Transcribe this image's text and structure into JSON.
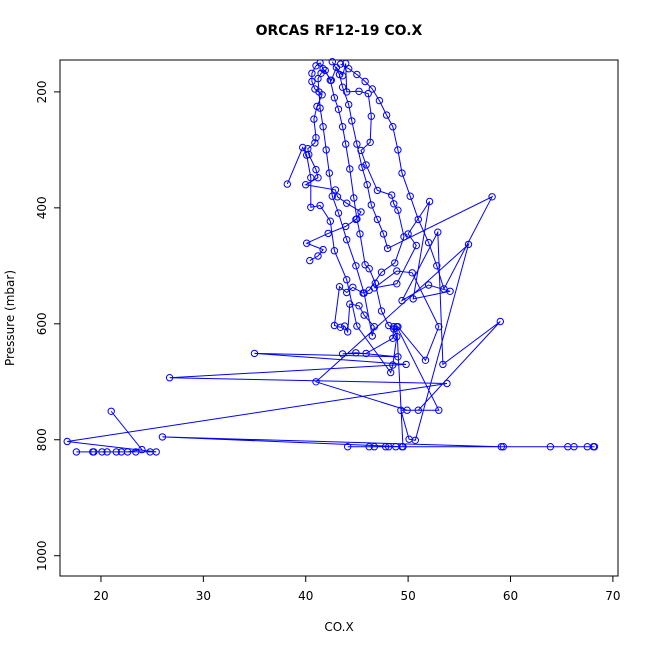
{
  "chart_data": {
    "type": "line",
    "title": "ORCAS RF12-19 CO.X",
    "xlabel": "CO.X",
    "ylabel": "Pressure (mbar)",
    "xlim": [
      16,
      70.5
    ],
    "ylim": [
      1035,
      145
    ],
    "y_reversed": true,
    "x_ticks": [
      20,
      30,
      40,
      50,
      60,
      70
    ],
    "y_ticks": [
      200,
      400,
      600,
      800,
      1000
    ],
    "grid": false,
    "legend": "none",
    "colors": {
      "series": "#0000ff",
      "axes": "#000000"
    },
    "series": [
      {
        "points": [
          [
            21.0,
            751
          ],
          [
            24.0,
            817
          ],
          [
            22.6,
            821
          ],
          [
            21.5,
            821
          ],
          [
            20.6,
            821
          ],
          [
            19.3,
            821
          ],
          [
            17.6,
            821
          ],
          [
            19.2,
            821
          ],
          [
            20.1,
            821
          ],
          [
            22.0,
            821
          ],
          [
            23.4,
            821
          ],
          [
            24.8,
            821
          ],
          [
            25.4,
            821
          ],
          [
            16.7,
            803
          ],
          [
            53.8,
            703
          ],
          [
            26.7,
            693
          ],
          [
            49.8,
            670
          ],
          [
            35.0,
            651
          ],
          [
            49.0,
            657
          ],
          [
            44.9,
            650
          ],
          [
            43.6,
            652
          ],
          [
            45.9,
            651
          ],
          [
            48.5,
            625
          ],
          [
            48.6,
            605
          ],
          [
            49.0,
            605
          ],
          [
            51.7,
            663
          ],
          [
            53.0,
            605
          ],
          [
            50.4,
            512
          ],
          [
            48.9,
            509
          ],
          [
            46.7,
            538
          ],
          [
            48.9,
            531
          ],
          [
            50.8,
            465
          ],
          [
            50.0,
            445
          ],
          [
            52.1,
            389
          ],
          [
            50.5,
            557
          ],
          [
            54.1,
            544
          ],
          [
            52.0,
            533
          ],
          [
            49.4,
            560
          ],
          [
            52.9,
            442
          ],
          [
            53.4,
            670
          ],
          [
            59.0,
            596
          ],
          [
            51.0,
            749
          ],
          [
            49.3,
            749
          ],
          [
            50.1,
            799
          ],
          [
            50.7,
            801
          ],
          [
            55.9,
            463
          ],
          [
            41.0,
            700
          ],
          [
            49.9,
            749
          ],
          [
            53.0,
            749
          ],
          [
            48.9,
            605
          ],
          [
            49.5,
            812
          ],
          [
            59.3,
            812
          ],
          [
            59.1,
            812
          ],
          [
            26.0,
            795
          ],
          [
            49.4,
            812
          ],
          [
            47.8,
            812
          ],
          [
            46.7,
            812
          ],
          [
            46.2,
            812
          ],
          [
            44.1,
            812
          ],
          [
            48.1,
            812
          ],
          [
            48.8,
            812
          ],
          [
            63.9,
            812
          ],
          [
            65.6,
            812
          ],
          [
            66.2,
            812
          ],
          [
            67.5,
            812
          ],
          [
            68.1,
            812
          ],
          [
            68.2,
            812
          ]
        ]
      },
      {
        "points": [
          [
            40.4,
            491
          ],
          [
            41.2,
            483
          ],
          [
            41.7,
            472
          ],
          [
            40.1,
            461
          ],
          [
            42.2,
            444
          ],
          [
            43.9,
            432
          ],
          [
            44.9,
            420
          ],
          [
            45.4,
            407
          ],
          [
            44.0,
            392
          ],
          [
            43.1,
            381
          ],
          [
            42.9,
            369
          ],
          [
            40.0,
            360
          ],
          [
            41.2,
            348
          ],
          [
            41.0,
            334
          ],
          [
            40.3,
            308
          ],
          [
            40.2,
            298
          ],
          [
            40.9,
            288
          ],
          [
            41.0,
            279
          ],
          [
            40.8,
            247
          ],
          [
            41.1,
            225
          ],
          [
            41.6,
            205
          ],
          [
            40.9,
            195
          ],
          [
            40.6,
            182
          ],
          [
            40.6,
            168
          ],
          [
            41.0,
            155
          ],
          [
            41.4,
            150
          ],
          [
            41.7,
            160
          ],
          [
            42.5,
            180
          ],
          [
            43.0,
            158
          ],
          [
            43.6,
            172
          ],
          [
            43.9,
            151
          ],
          [
            44.0,
            200
          ],
          [
            45.2,
            199
          ],
          [
            46.1,
            203
          ],
          [
            46.4,
            242
          ],
          [
            46.3,
            287
          ],
          [
            45.4,
            301
          ],
          [
            45.9,
            326
          ],
          [
            47.0,
            370
          ],
          [
            48.4,
            378
          ],
          [
            48.6,
            393
          ],
          [
            49.0,
            404
          ],
          [
            49.6,
            450
          ],
          [
            48.7,
            495
          ],
          [
            47.4,
            511
          ],
          [
            46.2,
            542
          ],
          [
            45.6,
            547
          ],
          [
            44.6,
            537
          ],
          [
            44.0,
            546
          ],
          [
            43.3,
            536
          ],
          [
            42.8,
            603
          ],
          [
            43.4,
            606
          ],
          [
            43.8,
            604
          ],
          [
            44.1,
            614
          ],
          [
            44.3,
            566
          ],
          [
            45.2,
            569
          ],
          [
            45.7,
            585
          ],
          [
            46.7,
            605
          ],
          [
            46.5,
            621
          ],
          [
            45.7,
            547
          ],
          [
            44.9,
            500
          ],
          [
            44.0,
            455
          ],
          [
            43.2,
            409
          ],
          [
            42.6,
            380
          ],
          [
            42.3,
            340
          ],
          [
            42.0,
            300
          ],
          [
            41.7,
            260
          ],
          [
            41.4,
            228
          ],
          [
            41.3,
            200
          ],
          [
            41.2,
            177
          ],
          [
            41.5,
            168
          ],
          [
            41.9,
            163
          ],
          [
            42.4,
            180
          ],
          [
            42.8,
            210
          ],
          [
            43.2,
            230
          ],
          [
            43.6,
            260
          ],
          [
            43.9,
            290
          ],
          [
            44.3,
            333
          ],
          [
            44.7,
            383
          ],
          [
            45.0,
            419
          ],
          [
            45.3,
            445
          ],
          [
            45.8,
            498
          ],
          [
            46.2,
            505
          ],
          [
            46.8,
            530
          ],
          [
            47.4,
            578
          ],
          [
            48.1,
            603
          ],
          [
            48.6,
            609
          ],
          [
            48.9,
            622
          ],
          [
            48.5,
            671
          ],
          [
            48.3,
            684
          ],
          [
            45.0,
            604
          ],
          [
            44.0,
            524
          ],
          [
            42.8,
            474
          ],
          [
            42.4,
            423
          ],
          [
            41.4,
            396
          ],
          [
            40.5,
            399
          ],
          [
            40.5,
            348
          ],
          [
            40.1,
            309
          ],
          [
            39.7,
            296
          ],
          [
            38.2,
            359
          ]
        ]
      },
      {
        "points": [
          [
            43.4,
            152
          ],
          [
            44.2,
            160
          ],
          [
            45.0,
            170
          ],
          [
            45.8,
            182
          ],
          [
            46.5,
            195
          ],
          [
            47.2,
            215
          ],
          [
            47.9,
            240
          ],
          [
            48.5,
            260
          ],
          [
            49.0,
            300
          ],
          [
            49.4,
            340
          ],
          [
            50.2,
            380
          ],
          [
            51.0,
            420
          ],
          [
            52.0,
            460
          ],
          [
            52.8,
            500
          ],
          [
            53.5,
            540
          ],
          [
            58.2,
            381
          ],
          [
            48.0,
            470
          ],
          [
            47.6,
            445
          ],
          [
            47.0,
            420
          ],
          [
            46.4,
            395
          ],
          [
            46.0,
            360
          ],
          [
            45.5,
            330
          ],
          [
            45.0,
            290
          ],
          [
            44.5,
            250
          ],
          [
            44.2,
            222
          ],
          [
            43.6,
            192
          ],
          [
            43.3,
            170
          ],
          [
            42.6,
            148
          ]
        ]
      }
    ]
  }
}
